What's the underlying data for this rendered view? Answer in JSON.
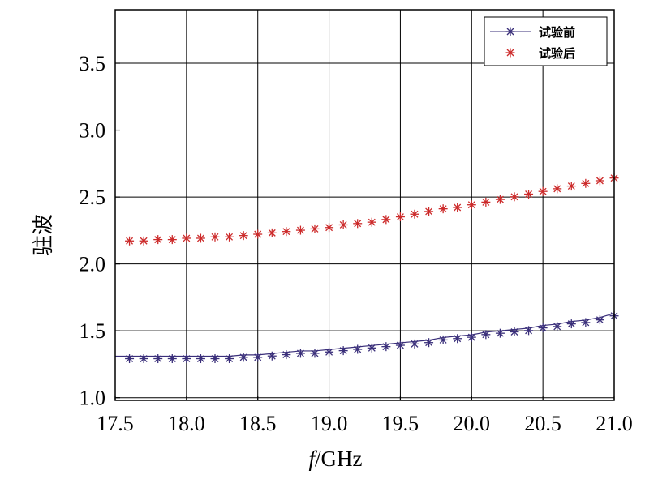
{
  "chart_data": {
    "type": "line",
    "xlabel_italic": "f",
    "xlabel_rest": "/GHz",
    "ylabel": "驻波",
    "xlim": [
      17.5,
      21.0
    ],
    "ylim": [
      0.98,
      3.9
    ],
    "xticks": [
      17.5,
      18.0,
      18.5,
      19.0,
      19.5,
      20.0,
      20.5,
      21.0
    ],
    "xtick_labels": [
      "17.5",
      "18.0",
      "18.5",
      "19.0",
      "19.5",
      "20.0",
      "20.5",
      "21.0"
    ],
    "yticks": [
      1.0,
      1.5,
      2.0,
      2.5,
      3.0,
      3.5
    ],
    "ytick_labels": [
      "1.0",
      "1.5",
      "2.0",
      "2.5",
      "3.0",
      "3.5"
    ],
    "grid": true,
    "legend_position": "top-right",
    "series": [
      {
        "name": "试验前",
        "color": "#3a2f7a",
        "style": "line-with-star-markers",
        "x": [
          17.5,
          17.6,
          17.7,
          17.8,
          17.9,
          18.0,
          18.1,
          18.2,
          18.3,
          18.4,
          18.5,
          18.6,
          18.7,
          18.8,
          18.9,
          19.0,
          19.1,
          19.2,
          19.3,
          19.4,
          19.5,
          19.6,
          19.7,
          19.8,
          19.9,
          20.0,
          20.1,
          20.2,
          20.3,
          20.4,
          20.5,
          20.6,
          20.7,
          20.8,
          20.9,
          21.0
        ],
        "values": [
          1.31,
          1.31,
          1.31,
          1.31,
          1.31,
          1.31,
          1.31,
          1.31,
          1.31,
          1.32,
          1.32,
          1.33,
          1.34,
          1.35,
          1.35,
          1.36,
          1.37,
          1.38,
          1.39,
          1.4,
          1.41,
          1.42,
          1.43,
          1.45,
          1.46,
          1.47,
          1.49,
          1.5,
          1.51,
          1.52,
          1.54,
          1.55,
          1.57,
          1.58,
          1.6,
          1.63
        ]
      },
      {
        "name": "试验后",
        "color": "#cc2a2a",
        "style": "star-markers",
        "x": [
          17.6,
          17.7,
          17.8,
          17.9,
          18.0,
          18.1,
          18.2,
          18.3,
          18.4,
          18.5,
          18.6,
          18.7,
          18.8,
          18.9,
          19.0,
          19.1,
          19.2,
          19.3,
          19.4,
          19.5,
          19.6,
          19.7,
          19.8,
          19.9,
          20.0,
          20.1,
          20.2,
          20.3,
          20.4,
          20.5,
          20.6,
          20.7,
          20.8,
          20.9,
          21.0
        ],
        "values": [
          2.19,
          2.19,
          2.2,
          2.2,
          2.21,
          2.21,
          2.22,
          2.22,
          2.23,
          2.24,
          2.25,
          2.26,
          2.27,
          2.28,
          2.29,
          2.31,
          2.32,
          2.33,
          2.35,
          2.37,
          2.39,
          2.41,
          2.43,
          2.44,
          2.46,
          2.48,
          2.5,
          2.52,
          2.54,
          2.56,
          2.58,
          2.6,
          2.62,
          2.64,
          2.66
        ]
      }
    ]
  }
}
